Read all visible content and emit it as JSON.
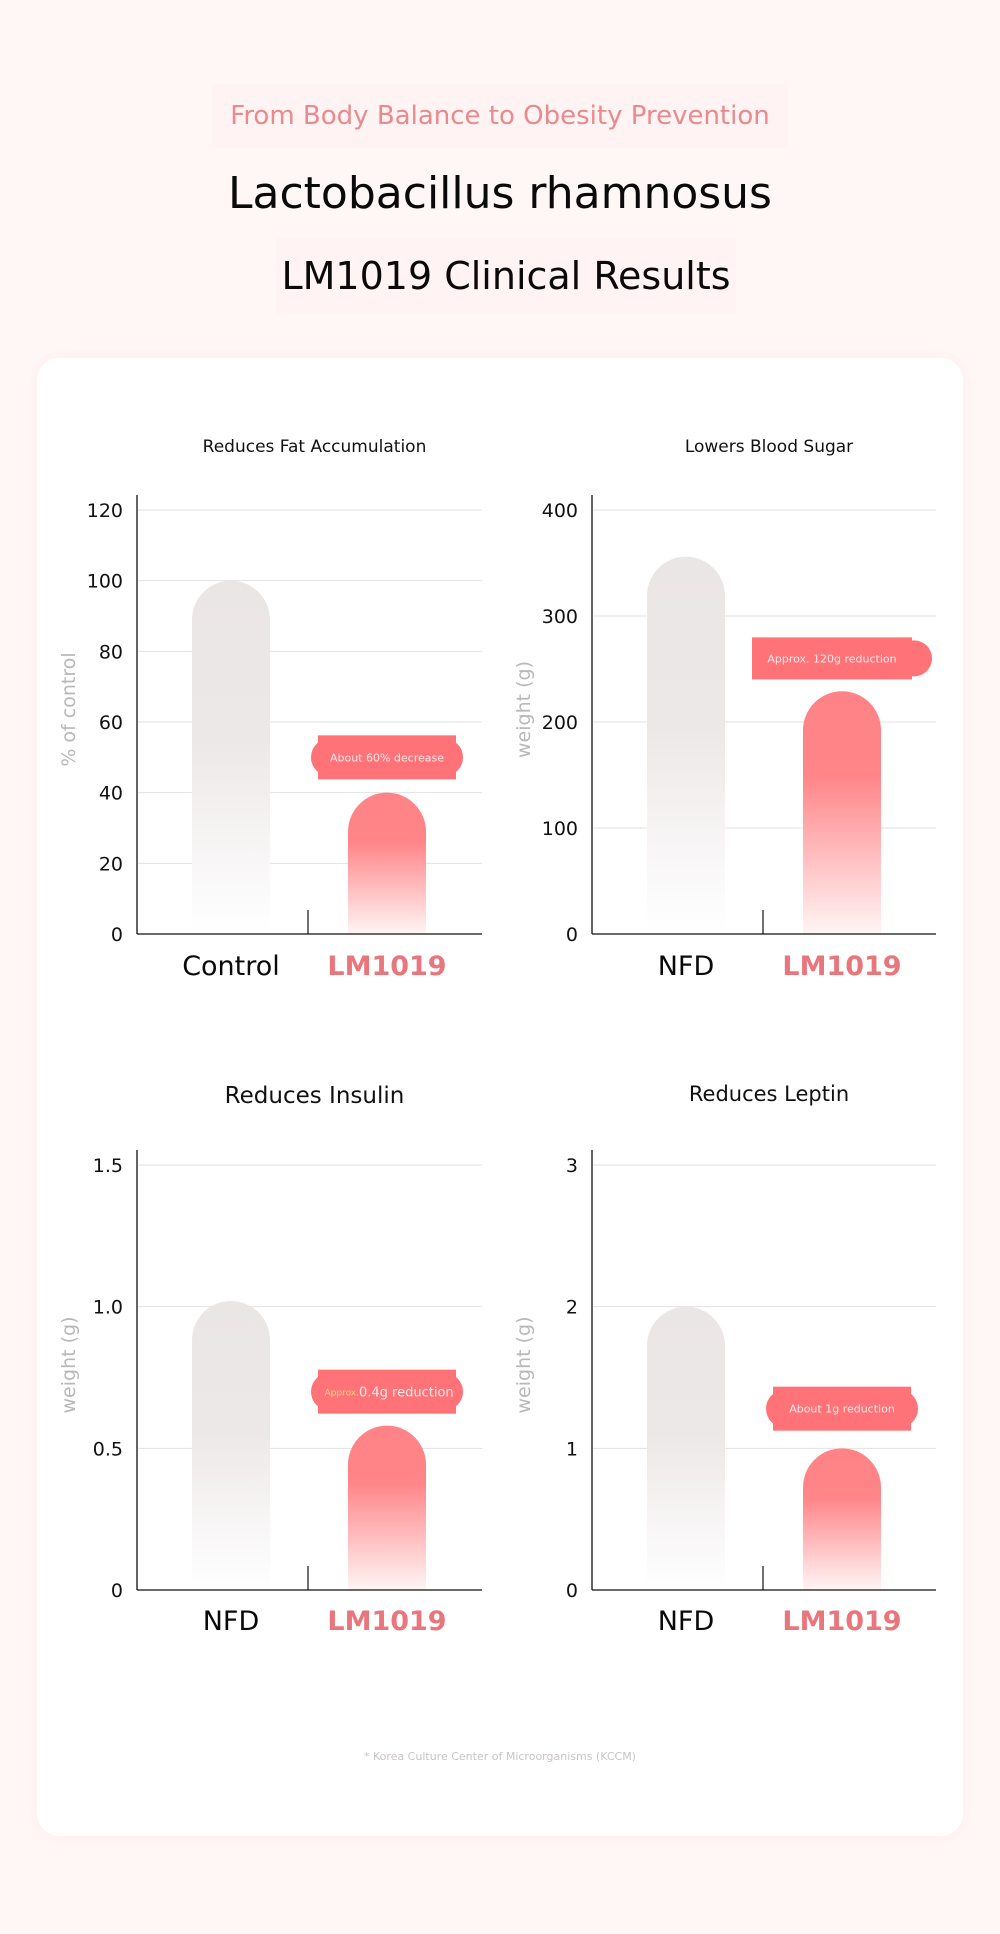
{
  "header": {
    "subtitle": "From Body Balance to Obesity Prevention",
    "title_line1": "Lactobacillus rhamnosus",
    "title_line2": "LM1019 Clinical Results"
  },
  "footnote": "* Korea Culture Center of Microorganisms (KCCM)",
  "colors": {
    "page_bg": "#fff6f6",
    "accent": "#ff7378",
    "accent_text": "#e8767c",
    "subtitle": "#e88a8e",
    "control_bar": "#ece7e7",
    "treatment_bar": "#ff8386",
    "grid": "#e2e2e2",
    "axis_label": "#b8b8b8",
    "badge_highlight": "#ffd27f"
  },
  "chart_data": [
    {
      "type": "bar",
      "title": "Reduces Fat Accumulation",
      "ylabel": "% of control",
      "xlabel": "",
      "categories": [
        "Control",
        "LM1019"
      ],
      "values": [
        100,
        40
      ],
      "ylim": [
        0,
        120
      ],
      "yticks": [
        0,
        20,
        40,
        60,
        80,
        100,
        120
      ],
      "ytick_labels": [
        "0",
        "20",
        "40",
        "60",
        "80",
        "100",
        "120"
      ],
      "grid": true,
      "annotation": {
        "prefix": "",
        "text": "About 60% decrease",
        "anchor_value": 50
      }
    },
    {
      "type": "bar",
      "title": "Lowers Blood Sugar",
      "ylabel": "weight (g)",
      "xlabel": "",
      "categories": [
        "NFD",
        "LM1019"
      ],
      "values": [
        356,
        229
      ],
      "ylim": [
        0,
        400
      ],
      "yticks": [
        0,
        100,
        200,
        300,
        400
      ],
      "ytick_labels": [
        "0",
        "100",
        "200",
        "300",
        "400"
      ],
      "grid": true,
      "annotation": {
        "prefix": "",
        "text": "Approx. 120g reduction",
        "anchor_value": 260
      }
    },
    {
      "type": "bar",
      "title": "Reduces Insulin",
      "ylabel": "weight (g)",
      "xlabel": "",
      "categories": [
        "NFD",
        "LM1019"
      ],
      "values": [
        1.02,
        0.58
      ],
      "ylim": [
        0,
        1.5
      ],
      "yticks": [
        0,
        0.5,
        1.0,
        1.5
      ],
      "ytick_labels": [
        "0",
        "0.5",
        "1.0",
        "1.5"
      ],
      "grid": true,
      "annotation": {
        "prefix": "Approx.",
        "text": "0.4g reduction",
        "anchor_value": 0.7
      }
    },
    {
      "type": "bar",
      "title": "Reduces Leptin",
      "ylabel": "weight (g)",
      "xlabel": "",
      "categories": [
        "NFD",
        "LM1019"
      ],
      "values": [
        2.0,
        1.0
      ],
      "ylim": [
        0,
        3
      ],
      "yticks": [
        0,
        1,
        2,
        3
      ],
      "ytick_labels": [
        "0",
        "1",
        "2",
        "3"
      ],
      "grid": true,
      "annotation": {
        "prefix": "",
        "text": "About 1g reduction",
        "anchor_value": 1.28
      }
    }
  ]
}
